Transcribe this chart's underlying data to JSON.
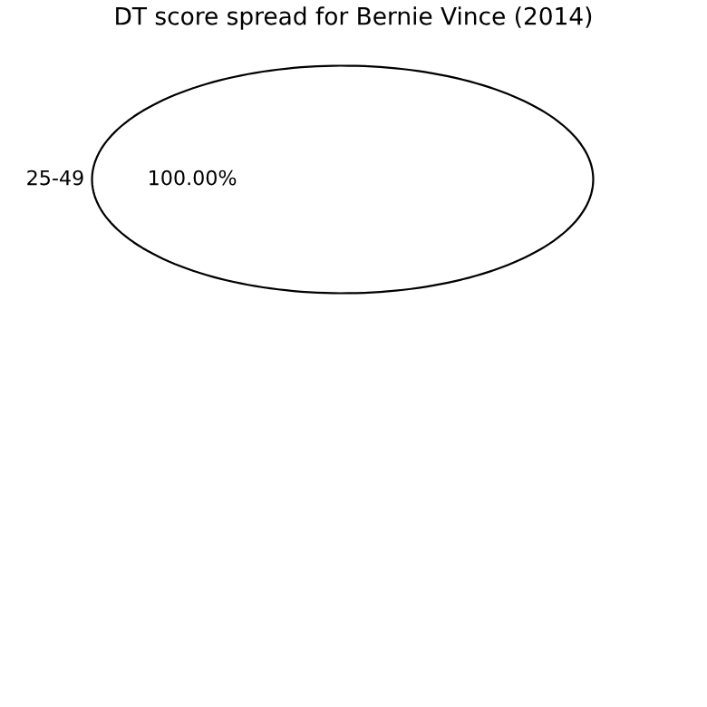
{
  "chart_data": {
    "type": "pie",
    "title": "DT score spread for Bernie Vince (2014)",
    "categories": [
      "25-49"
    ],
    "values": [
      100
    ],
    "colors": [
      "#ffffff"
    ],
    "value_labels": [
      "100.00%"
    ]
  }
}
